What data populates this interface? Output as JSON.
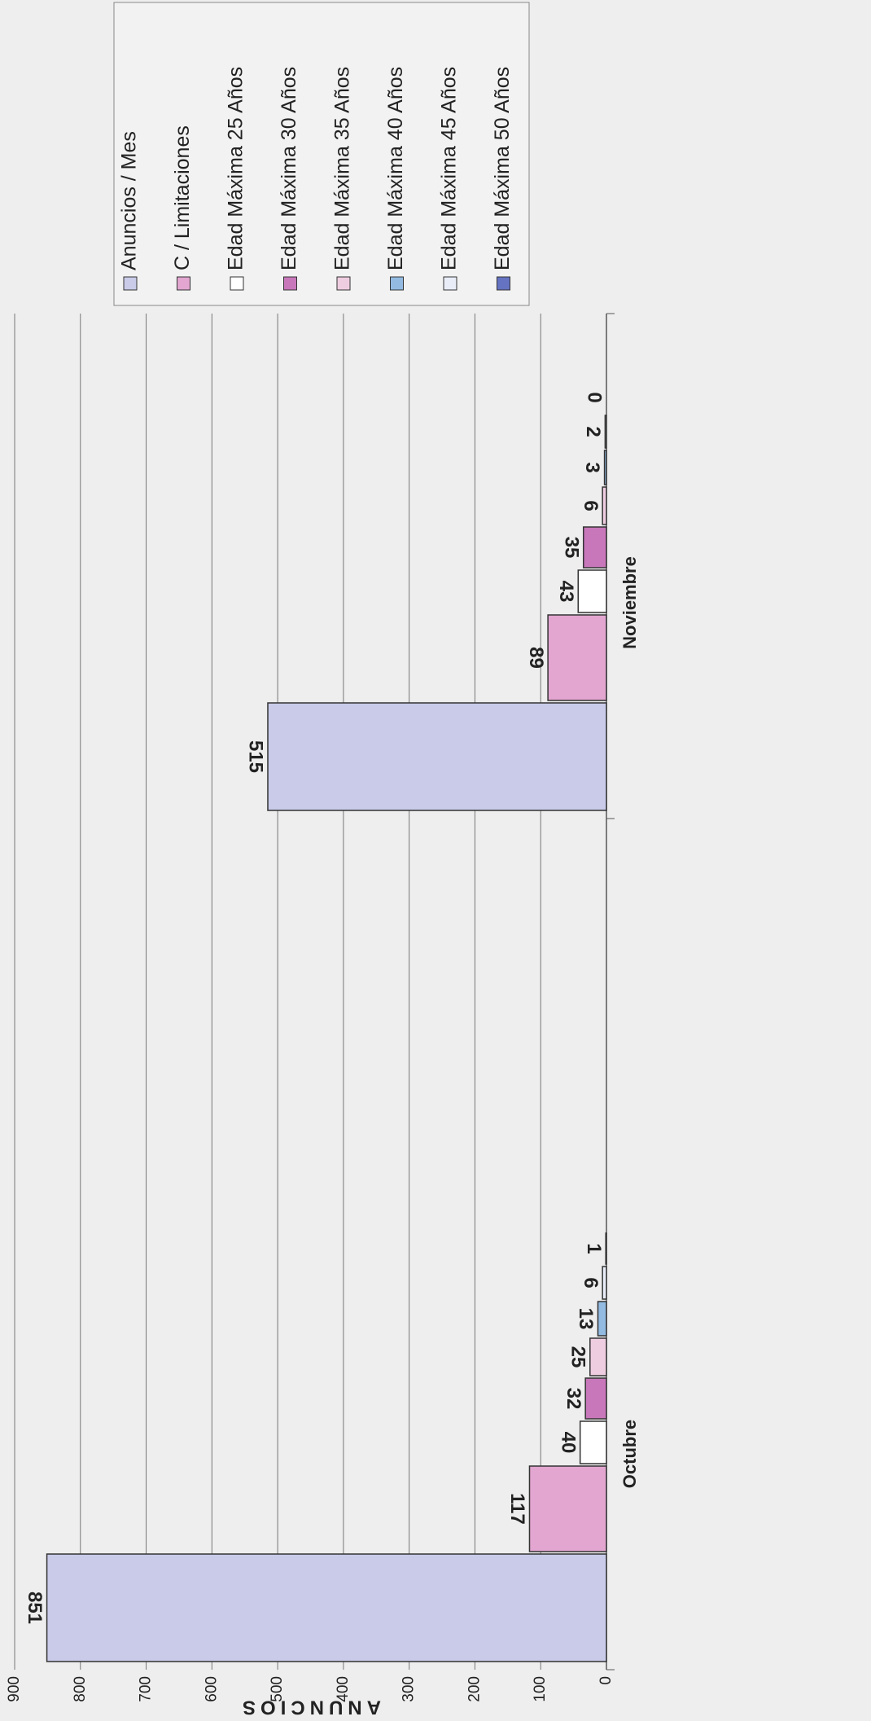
{
  "chart_data": {
    "type": "bar",
    "y_label": "ANUNCIOS",
    "categories": [
      "Octubre",
      "Noviembre"
    ],
    "series": [
      {
        "name": "Anuncios / Mes",
        "color": "#c9cbe9",
        "values": [
          851,
          515
        ]
      },
      {
        "name": "C / Limitaciones",
        "color": "#e2a6d0",
        "values": [
          117,
          89
        ]
      },
      {
        "name": "Edad Máxima 25 Años",
        "color": "#ffffff",
        "values": [
          40,
          43
        ]
      },
      {
        "name": "Edad Máxima 30 Años",
        "color": "#c977bb",
        "values": [
          32,
          35
        ]
      },
      {
        "name": "Edad Máxima 35 Años",
        "color": "#efcde0",
        "values": [
          25,
          6
        ]
      },
      {
        "name": "Edad Máxima 40 Años",
        "color": "#93bbe2",
        "values": [
          13,
          3
        ]
      },
      {
        "name": "Edad Máxima 45 Años",
        "color": "#e9edf8",
        "values": [
          6,
          2
        ]
      },
      {
        "name": "Edad Máxima 50 Años",
        "color": "#6573c2",
        "values": [
          1,
          0
        ]
      }
    ],
    "ylim": [
      0,
      900
    ],
    "yticks": [
      0,
      100,
      200,
      300,
      400,
      500,
      600,
      700,
      800,
      900
    ],
    "grid": true,
    "legend": "right"
  }
}
